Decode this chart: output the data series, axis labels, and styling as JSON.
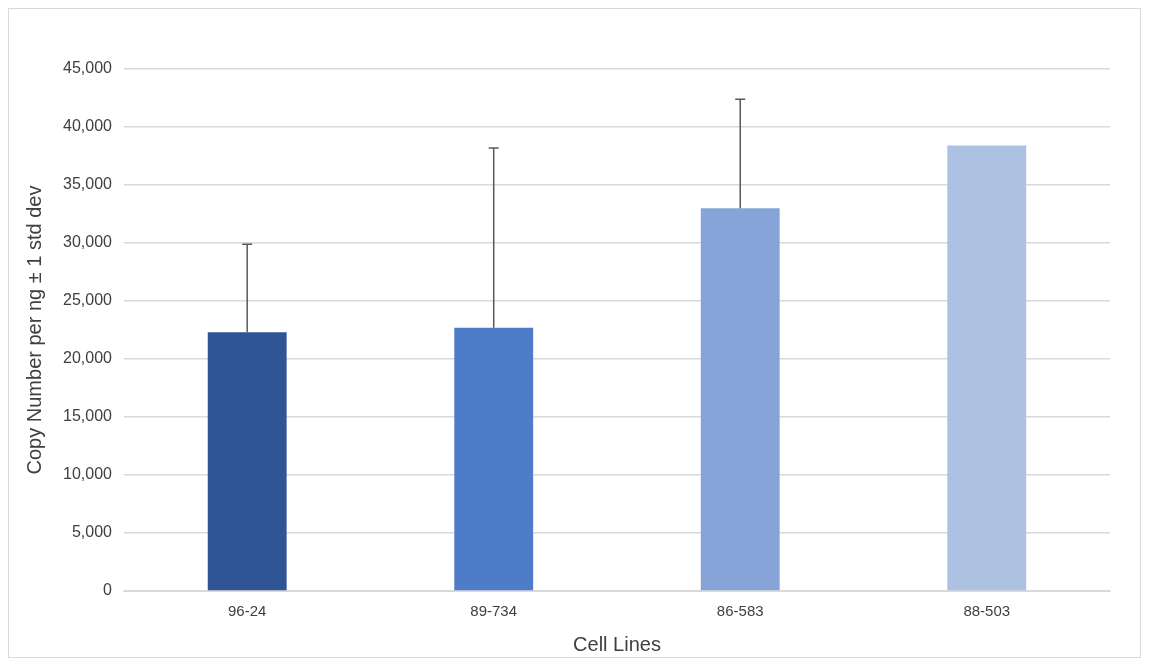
{
  "chart_data": {
    "type": "bar",
    "categories": [
      "96-24",
      "89-734",
      "86-583",
      "88-503"
    ],
    "values": [
      22300,
      22700,
      33000,
      38400
    ],
    "colors": [
      "#2f5597",
      "#4f7cc8",
      "#86a4d8",
      "#adc1e3"
    ],
    "errors": [
      [
        22300,
        29900
      ],
      [
        22700,
        38200
      ],
      [
        33000,
        42400
      ],
      null
    ],
    "xlabel": "Cell Lines",
    "ylabel": "Copy Number per ng ± 1 std dev",
    "ylim": [
      0,
      45000
    ],
    "yticks": [
      {
        "value": 0,
        "label": "0"
      },
      {
        "value": 5000,
        "label": "5,000"
      },
      {
        "value": 10000,
        "label": "10,000"
      },
      {
        "value": 15000,
        "label": "15,000"
      },
      {
        "value": 20000,
        "label": "20,000"
      },
      {
        "value": 25000,
        "label": "25,000"
      },
      {
        "value": 30000,
        "label": "30,000"
      },
      {
        "value": 35000,
        "label": "35,000"
      },
      {
        "value": 40000,
        "label": "40,000"
      },
      {
        "value": 45000,
        "label": "45,000"
      }
    ],
    "grid": "y",
    "legend": false
  }
}
